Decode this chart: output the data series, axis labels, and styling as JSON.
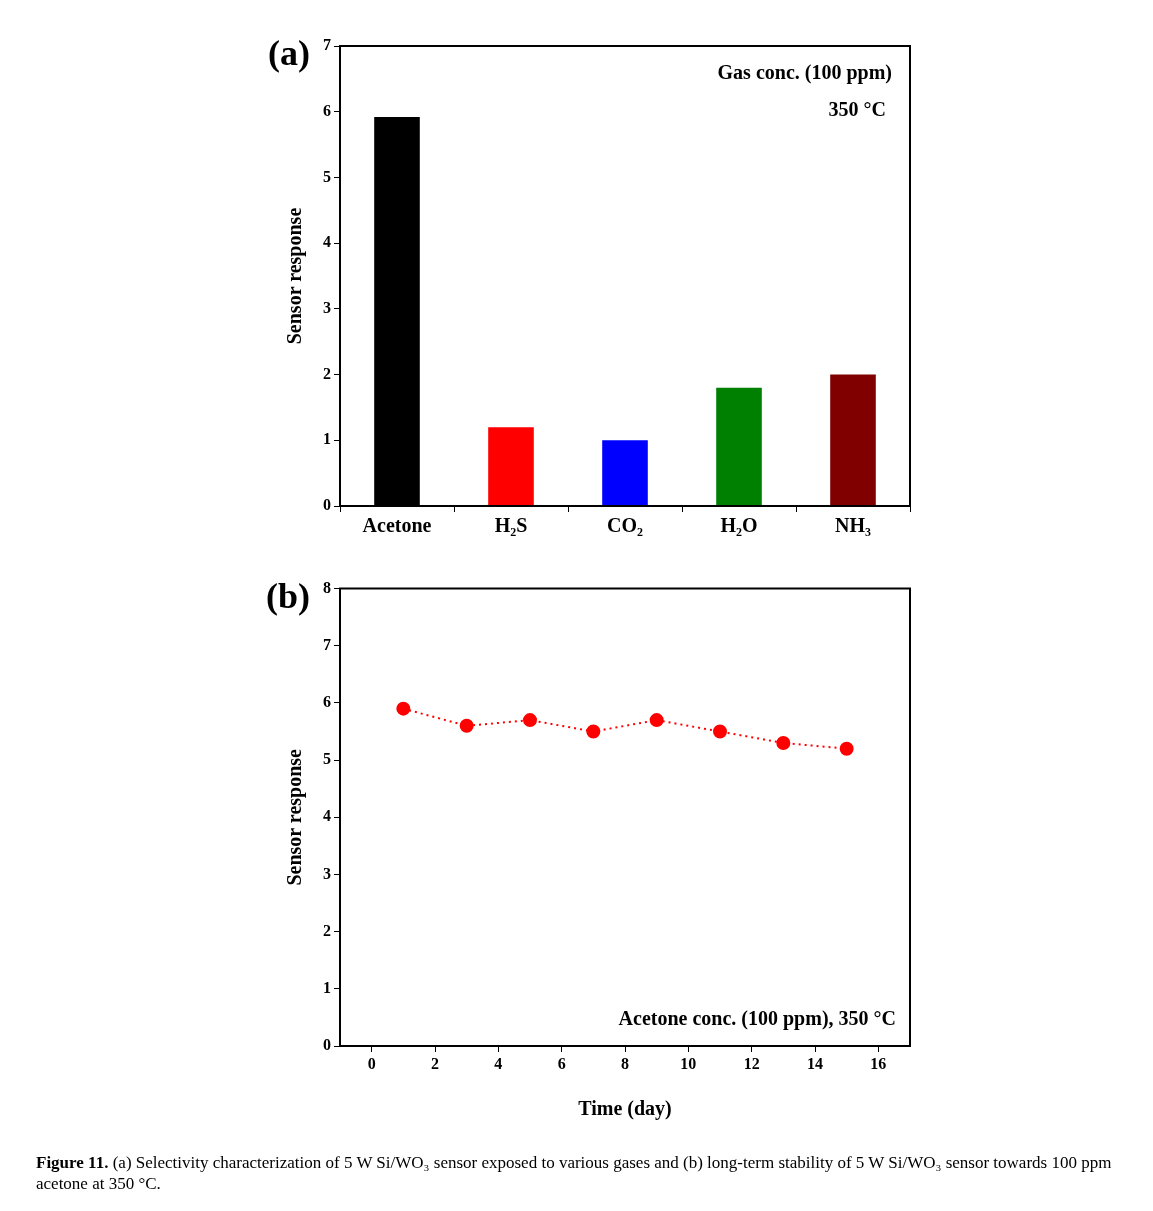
{
  "chart_data": [
    {
      "type": "bar",
      "ylabel": "Sensor response",
      "categories": [
        "Acetone",
        "H₂S",
        "CO₂",
        "H₂O",
        "NH₃"
      ],
      "values": [
        5.92,
        1.2,
        1.0,
        1.8,
        2.0
      ],
      "colors": [
        "#000000",
        "#ff0000",
        "#0000ff",
        "#008000",
        "#800000"
      ],
      "ylim": [
        0,
        7
      ],
      "yticks": [
        0,
        1,
        2,
        3,
        4,
        5,
        6,
        7
      ],
      "grid": false,
      "legend": false,
      "annotations": [
        "(a)",
        "Gas conc. (100 ppm)",
        "350 °C"
      ]
    },
    {
      "type": "line",
      "xlabel": "Time (day)",
      "ylabel": "Sensor response",
      "x": [
        1,
        3,
        5,
        7,
        9,
        11,
        13,
        15
      ],
      "series": [
        {
          "color": "#ff0000",
          "values": [
            5.9,
            5.6,
            5.7,
            5.5,
            5.7,
            5.5,
            5.3,
            5.2
          ]
        }
      ],
      "marker": "circle",
      "line_style": "dotted",
      "xlim": [
        -1,
        17
      ],
      "xticks": [
        0,
        2,
        4,
        6,
        8,
        10,
        12,
        14,
        16
      ],
      "ylim": [
        0,
        8
      ],
      "yticks": [
        0,
        1,
        2,
        3,
        4,
        5,
        6,
        7,
        8
      ],
      "grid": false,
      "legend": false,
      "annotations": [
        "(b)",
        "Acetone conc. (100 ppm), 350 °C",
        "Figure 11. (a) Selectivity characterization of 5 W Si/WO₃ sensor exposed to various gases and (b) long-term stability of 5 W Si/WO₃ sensor towards 100 ppm acetone at 350 °C."
      ]
    }
  ]
}
